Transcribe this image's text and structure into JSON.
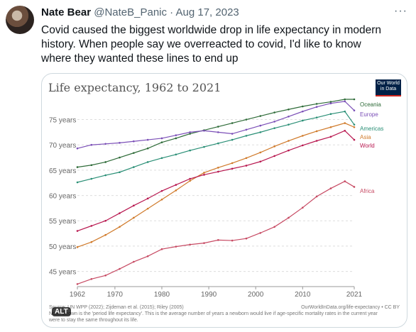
{
  "tweet": {
    "display_name": "Nate Bear",
    "handle": "@NateB_Panic",
    "separator": "·",
    "date": "Aug 17, 2023",
    "more_label": "···",
    "text": "Covid caused the biggest worldwide drop in life expectancy in modern history. When people say we overreacted to covid, I'd like to know where they wanted these lines to end up"
  },
  "card": {
    "logo_text": "Our World in Data",
    "source": "Source: UN WPP (2022); Zijdeman et al. (2015); Riley (2005)",
    "credit": "OurWorldInData.org/life-expectancy • CC BY",
    "note": "Note: Shown is the 'period life expectancy'. This is the average number of years a newborn would live if age-specific mortality rates in the current year were to stay the same throughout its life.",
    "alt_badge": "ALT"
  },
  "chart_data": {
    "type": "line",
    "title": "Life expectancy, 1962 to 2021",
    "x": [
      1962,
      1965,
      1968,
      1971,
      1974,
      1977,
      1980,
      1983,
      1986,
      1989,
      1992,
      1995,
      1998,
      2001,
      2004,
      2007,
      2010,
      2013,
      2016,
      2019,
      2021
    ],
    "xticks": [
      1962,
      1970,
      1980,
      1990,
      2000,
      2010,
      2021
    ],
    "yticks": [
      45,
      50,
      55,
      60,
      65,
      70,
      75
    ],
    "ytick_suffix": " years",
    "xlim": [
      1962,
      2021
    ],
    "ylim": [
      42,
      79
    ],
    "grid": "horizontal dashed",
    "legend": "right, labels at line ends",
    "series": [
      {
        "name": "Oceania",
        "color": "#2e6b38",
        "values": [
          65.6,
          66.0,
          66.6,
          67.5,
          68.4,
          69.3,
          70.5,
          71.3,
          72.2,
          72.9,
          73.6,
          74.3,
          75.0,
          75.7,
          76.4,
          77.0,
          77.6,
          78.1,
          78.5,
          79.0,
          79.0
        ]
      },
      {
        "name": "Europe",
        "color": "#7b4fb7",
        "values": [
          69.3,
          70.0,
          70.2,
          70.4,
          70.7,
          71.0,
          71.3,
          71.9,
          72.5,
          72.8,
          72.5,
          72.2,
          73.0,
          73.8,
          74.6,
          75.6,
          76.6,
          77.5,
          78.2,
          78.6,
          76.8
        ]
      },
      {
        "name": "Americas",
        "color": "#2a8f76",
        "values": [
          62.6,
          63.3,
          64.0,
          64.6,
          65.6,
          66.6,
          67.4,
          68.1,
          68.9,
          69.6,
          70.3,
          71.0,
          71.8,
          72.5,
          73.3,
          74.0,
          74.8,
          75.4,
          76.1,
          76.6,
          74.0
        ]
      },
      {
        "name": "Asia",
        "color": "#d07a2a",
        "values": [
          49.8,
          50.8,
          52.2,
          53.8,
          55.6,
          57.4,
          59.2,
          61.0,
          62.9,
          64.5,
          65.5,
          66.4,
          67.4,
          68.5,
          69.7,
          70.8,
          71.8,
          72.7,
          73.5,
          74.3,
          73.5
        ]
      },
      {
        "name": "World",
        "color": "#b8174f",
        "values": [
          53.0,
          54.0,
          55.0,
          56.5,
          58.0,
          59.4,
          60.9,
          62.1,
          63.3,
          64.1,
          64.7,
          65.3,
          65.9,
          66.7,
          67.8,
          68.9,
          69.9,
          70.8,
          71.6,
          72.8,
          71.0
        ]
      },
      {
        "name": "Africa",
        "color": "#c74a63",
        "values": [
          42.5,
          43.5,
          44.2,
          45.5,
          46.9,
          48.0,
          49.4,
          49.9,
          50.3,
          50.6,
          51.2,
          51.1,
          51.5,
          52.6,
          53.8,
          55.6,
          57.6,
          59.8,
          61.4,
          62.8,
          61.7
        ]
      }
    ]
  }
}
